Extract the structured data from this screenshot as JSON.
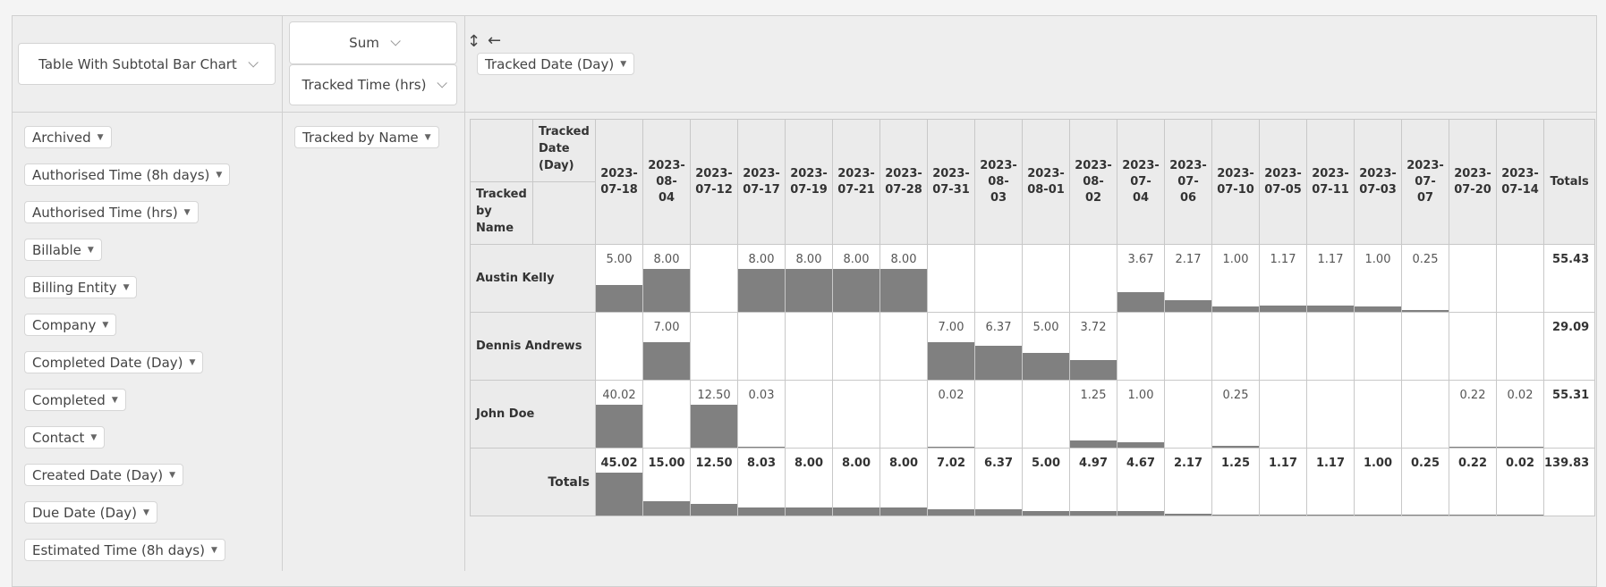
{
  "renderer": {
    "label": "Table With Subtotal Bar Chart"
  },
  "aggregator": {
    "label": "Sum"
  },
  "value_field": {
    "label": "Tracked Time (hrs)"
  },
  "controls": {
    "sort_glyph": "↕",
    "order_glyph": "←"
  },
  "col_field": {
    "label": "Tracked Date (Day)"
  },
  "row_field": {
    "label": "Tracked by Name"
  },
  "unused_attrs": [
    "Archived",
    "Authorised Time (8h days)",
    "Authorised Time (hrs)",
    "Billable",
    "Billing Entity",
    "Company",
    "Completed Date (Day)",
    "Completed",
    "Contact",
    "Created Date (Day)",
    "Due Date (Day)",
    "Estimated Time (8h days)"
  ],
  "pivot": {
    "col_axis_label": "Tracked Date (Day)",
    "row_axis_label": "Tracked by Name",
    "totals_label": "Totals",
    "columns": [
      [
        "2023-",
        "07-18"
      ],
      [
        "2023-",
        "08-",
        "04"
      ],
      [
        "2023-",
        "07-12"
      ],
      [
        "2023-",
        "07-17"
      ],
      [
        "2023-",
        "07-19"
      ],
      [
        "2023-",
        "07-21"
      ],
      [
        "2023-",
        "07-28"
      ],
      [
        "2023-",
        "07-31"
      ],
      [
        "2023-",
        "08-",
        "03"
      ],
      [
        "2023-",
        "08-01"
      ],
      [
        "2023-",
        "08-",
        "02"
      ],
      [
        "2023-",
        "07-",
        "04"
      ],
      [
        "2023-",
        "07-",
        "06"
      ],
      [
        "2023-",
        "07-10"
      ],
      [
        "2023-",
        "07-05"
      ],
      [
        "2023-",
        "07-11"
      ],
      [
        "2023-",
        "07-03"
      ],
      [
        "2023-",
        "07-",
        "07"
      ],
      [
        "2023-",
        "07-20"
      ],
      [
        "2023-",
        "07-14"
      ]
    ],
    "rows": [
      {
        "name": "Austin Kelly",
        "values": [
          "5.00",
          "8.00",
          "",
          "8.00",
          "8.00",
          "8.00",
          "8.00",
          "",
          "",
          "",
          "",
          "3.67",
          "2.17",
          "1.00",
          "1.17",
          "1.17",
          "1.00",
          "0.25",
          "",
          ""
        ],
        "total": "55.43"
      },
      {
        "name": "Dennis Andrews",
        "values": [
          "",
          "7.00",
          "",
          "",
          "",
          "",
          "",
          "7.00",
          "6.37",
          "5.00",
          "3.72",
          "",
          "",
          "",
          "",
          "",
          "",
          "",
          "",
          ""
        ],
        "total": "29.09"
      },
      {
        "name": "John Doe",
        "values": [
          "40.02",
          "",
          "12.50",
          "0.03",
          "",
          "",
          "",
          "0.02",
          "",
          "",
          "1.25",
          "1.00",
          "",
          "0.25",
          "",
          "",
          "",
          "",
          "0.22",
          "0.02"
        ],
        "total": "55.31"
      }
    ],
    "col_totals": [
      "45.02",
      "15.00",
      "12.50",
      "8.03",
      "8.00",
      "8.00",
      "8.00",
      "7.02",
      "6.37",
      "5.00",
      "4.97",
      "4.67",
      "2.17",
      "1.25",
      "1.17",
      "1.17",
      "1.00",
      "0.25",
      "0.22",
      "0.02"
    ],
    "grand_total": "139.83"
  }
}
